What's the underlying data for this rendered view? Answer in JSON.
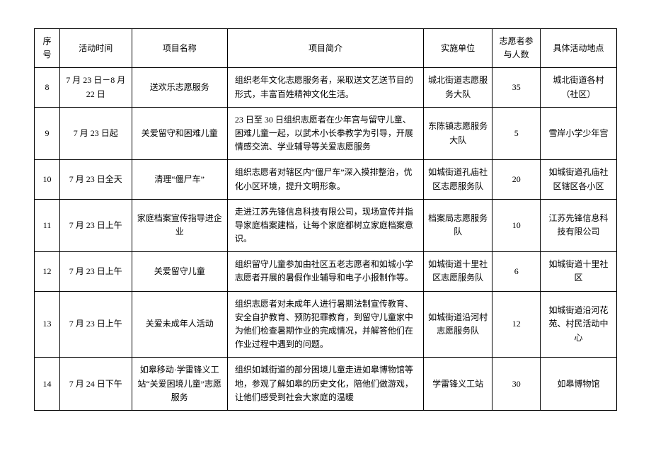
{
  "headers": {
    "no": "序号",
    "time": "活动时间",
    "project": "项目名称",
    "desc": "项目简介",
    "unit": "实施单位",
    "count": "志愿者参与人数",
    "location": "具体活动地点"
  },
  "rows": [
    {
      "no": "8",
      "time": "7 月 23 日－8 月 22 日",
      "project": "送欢乐志愿服务",
      "desc": "组织老年文化志愿服务者，采取送文艺送节目的形式，丰富百姓精神文化生活。",
      "unit": "城北街道志愿服务大队",
      "count": "35",
      "location": "城北街道各村（社区）"
    },
    {
      "no": "9",
      "time": "7 月 23 日起",
      "project": "关爱留守和困难儿童",
      "desc": "23 日至 30 日组织志愿者在少年宫与留守儿童、困难儿童一起，以武术小长拳教学为引导，开展情感交流、学业辅导等关爱志愿服务",
      "unit": "东陈镇志愿服务大队",
      "count": "5",
      "location": "雪岸小学少年宫"
    },
    {
      "no": "10",
      "time": "7 月 23 日全天",
      "project": "清理“僵尸车”",
      "desc": "组织志愿者对辖区内“僵尸车”深入摸排整治，优化小区环境，提升文明形象。",
      "unit": "如城街道孔庙社区志愿服务队",
      "count": "20",
      "location": "如城街道孔庙社区辖区各小区"
    },
    {
      "no": "11",
      "time": "7 月 23 日上午",
      "project": "家庭档案宣传指导进企业",
      "desc": "走进江苏先锋信息科技有限公司，现场宣传并指导家庭档案建档，让每个家庭都树立家庭档案意识。",
      "unit": "档案局志愿服务队",
      "count": "10",
      "location": "江苏先锋信息科技有限公司"
    },
    {
      "no": "12",
      "time": "7 月 23 日上午",
      "project": "关爱留守儿童",
      "desc": "组织留守儿童参加由社区五老志愿者和如城小学志愿者开展的暑假作业辅导和电子小报制作等。",
      "unit": "如城街道十里社区志愿服务队",
      "count": "6",
      "location": "如城街道十里社区"
    },
    {
      "no": "13",
      "time": "7 月 23 日上午",
      "project": "关爱未成年人活动",
      "desc": "组织志愿者对未成年人进行暑期法制宣传教育、安全自护教育、预防犯罪教育，到留守儿童家中为他们检查暑期作业的完成情况，并解答他们在作业过程中遇到的问题。",
      "unit": "如城街道沿河村志愿服务队",
      "count": "12",
      "location": "如城街道沿河花苑、村民活动中心"
    },
    {
      "no": "14",
      "time": "7 月 24 日下午",
      "project": "如皋移动·学雷锋义工站“关爱困境儿童”志愿服务",
      "desc": "组织如城街道的部分困境儿童走进如皋博物馆等地，参观了解如皋的历史文化，陪他们做游戏，让他们感受到社会大家庭的温暖",
      "unit": "学雷锋义工站",
      "count": "30",
      "location": "如皋博物馆"
    }
  ]
}
